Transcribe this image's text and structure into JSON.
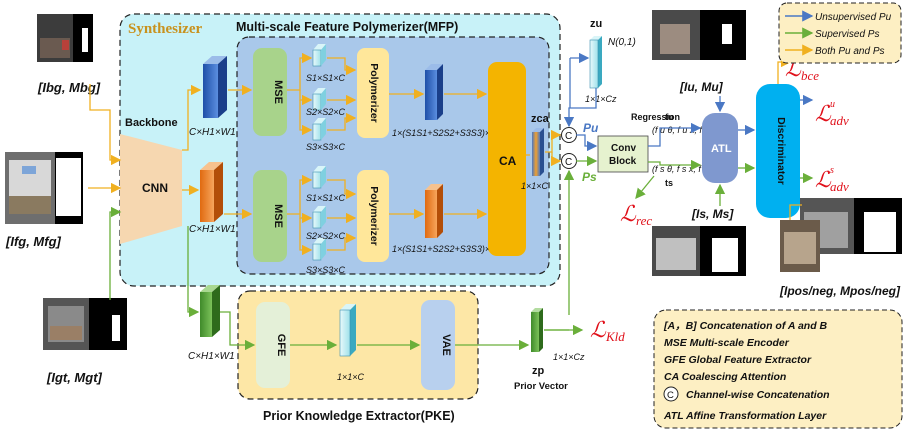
{
  "colors": {
    "synth_bg": "#c8f2f8",
    "mfp_bg": "#a9c8ea",
    "pke_bg": "#fde7a6",
    "legend_bg": "#fdefc3",
    "mse_green": "#a8d38b",
    "poly_yellow": "#ffe79a",
    "ca_orange": "#f4b400",
    "backbone": "#f6d7b0",
    "atl_blue": "#7f98cf",
    "disc_cyan": "#00b0f0",
    "unsup_line": "#4a78c4",
    "sup_line": "#6aaf3a",
    "both_line": "#f0b020",
    "loss_red": "#e0101a"
  },
  "synth": {
    "label": "Synthesizer",
    "mfp_label": "Multi-scale Feature Polymerizer(MFP)"
  },
  "pke": {
    "label": "Prior Knowledge Extractor(PKE)"
  },
  "blocks": {
    "backbone": "Backbone",
    "cnn": "CNN",
    "mse": "MSE",
    "polymerizer": "Polymerizer",
    "ca": "CA",
    "gfe": "GFE",
    "vae": "VAE",
    "conv_block_1": "Conv",
    "conv_block_2": "Block",
    "atl": "ATL",
    "discriminator": "Discriminator"
  },
  "dims": {
    "feat": "C×H1×W1",
    "s1": "S1×S1×C",
    "s2": "S2×S2×C",
    "s3": "S3×S3×C",
    "poly_out": "1×(S1S1+S2S2+S3S3)×C",
    "ca_out": "1×1×C",
    "gfe_out": "1×1×C",
    "zp_dim": "1×1×Cz",
    "zu_dim": "1×1×Cz"
  },
  "vars": {
    "z_ca": "zca",
    "z_u": "zu",
    "z_p": "zp",
    "prior_vector": "Prior Vector",
    "noise": "N(0,1)",
    "regression": "Regression",
    "p_u": "Pu",
    "p_s": "Ps",
    "t_u": "tu",
    "t_s": "ts",
    "f_u": "(f u θ, f u x, f u y)",
    "f_s": "(f s θ, f s x, f s y)",
    "concat_symbol": "C"
  },
  "images": {
    "bg": "[Ibg, Mbg]",
    "fg": "[Ifg, Mfg]",
    "gt": "[Igt, Mgt]",
    "u": "[Iu, Mu]",
    "s": "[Is, Ms]",
    "posneg": "[Ipos/neg, Mpos/neg]"
  },
  "losses": {
    "bce": "bce",
    "adv_u": "adv",
    "adv_s": "adv",
    "rec": "rec",
    "kld": "Kld"
  },
  "legend_top": {
    "unsup": "Unsupervised Pu",
    "sup": "Supervised Ps",
    "both": "Both Pu and Ps"
  },
  "legend_bottom": {
    "items": [
      "[A，B] Concatenation of A and B",
      "MSE Multi-scale Encoder",
      "GFE Global Feature Extractor",
      "CA  Coalescing Attention",
      "Channel-wise Concatenation",
      "ATL Affine Transformation Layer"
    ]
  }
}
